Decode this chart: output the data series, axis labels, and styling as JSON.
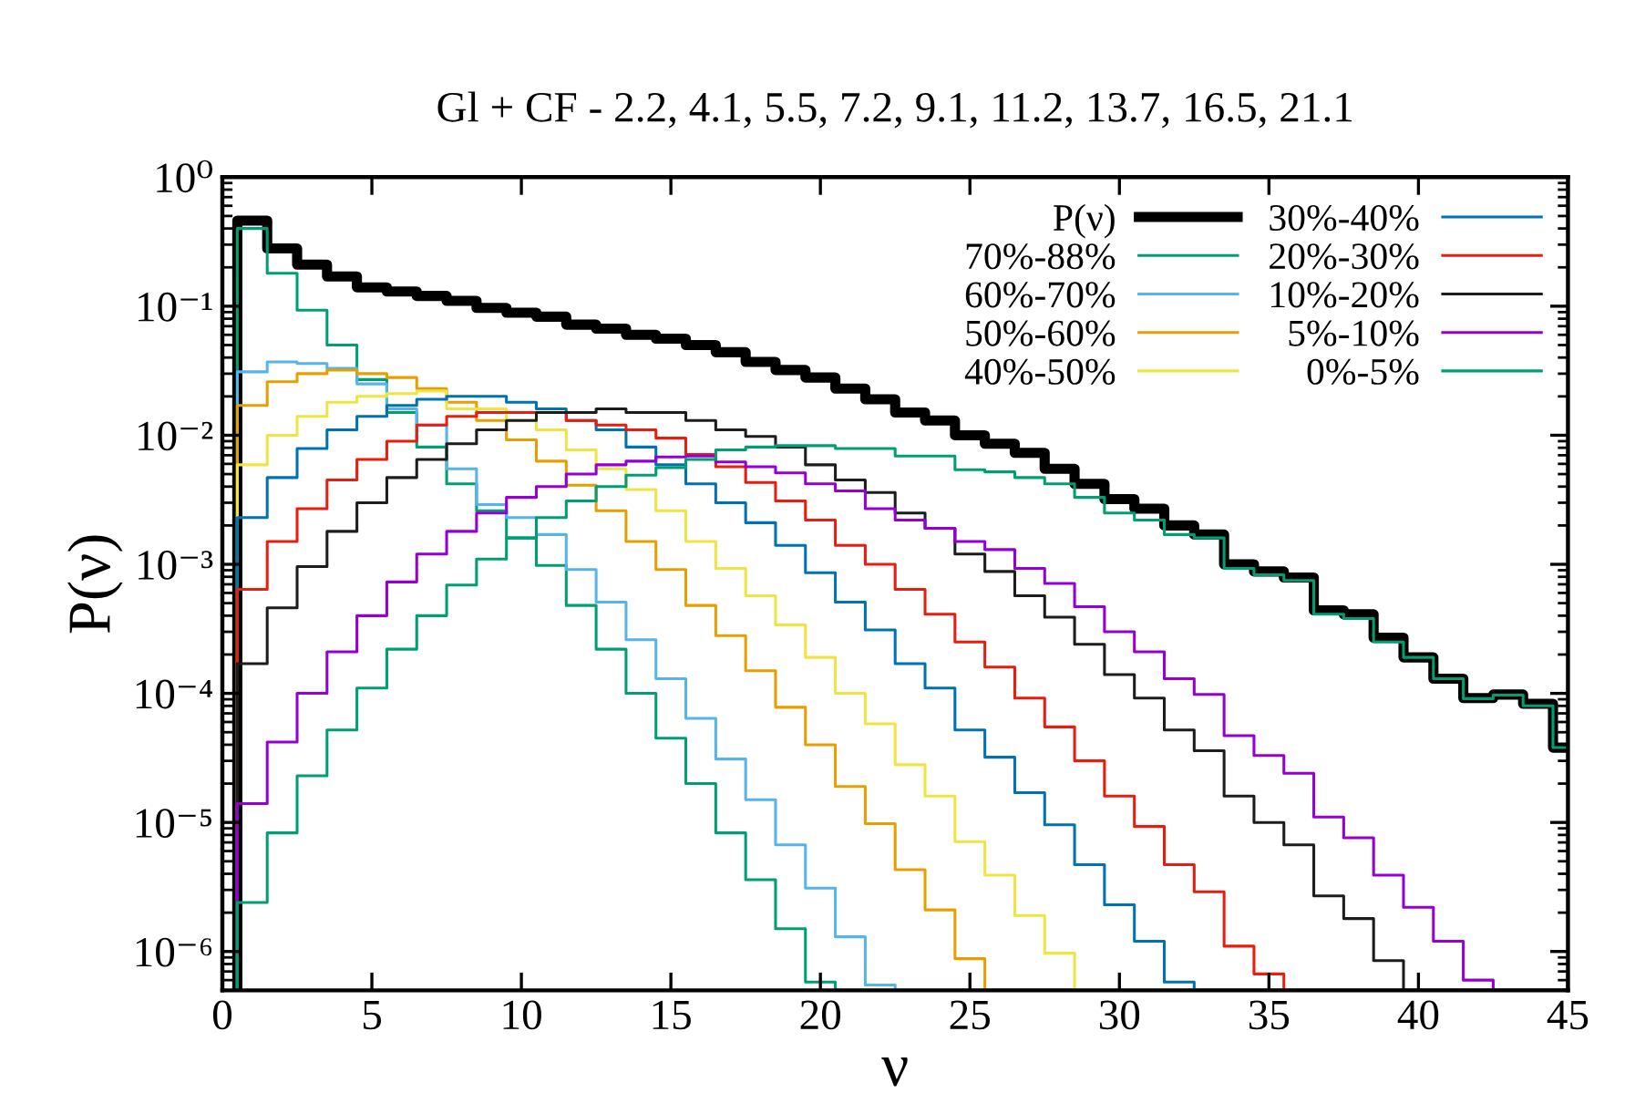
{
  "chart_data": {
    "type": "histogram",
    "title": "Gl + CF - 2.2, 4.1, 5.5, 7.2, 9.1, 11.2, 13.7, 16.5, 21.1",
    "xlabel": "ν",
    "ylabel": "P(ν)",
    "bins": [
      0.5,
      1.5,
      2.5,
      3.5,
      4.5,
      5.5,
      6.5,
      7.5,
      8.5,
      9.5,
      10.5,
      11.5,
      12.5,
      13.5,
      14.5,
      15.5,
      16.5,
      17.5,
      18.5,
      19.5,
      20.5,
      21.5,
      22.5,
      23.5,
      24.5,
      25.5,
      26.5,
      27.5,
      28.5,
      29.5,
      30.5,
      31.5,
      32.5,
      33.5,
      34.5,
      35.5,
      36.5,
      37.5,
      38.5,
      39.5,
      40.5,
      41.5,
      42.5,
      43.5,
      44.5,
      45.5
    ],
    "log": "y",
    "xlim": [
      0,
      45
    ],
    "ylim": [
      5e-07,
      1
    ],
    "xticks": [
      0,
      5,
      10,
      15,
      20,
      25,
      30,
      35,
      40,
      45
    ],
    "yticks": [
      {
        "value": 1,
        "label": "10⁰"
      },
      {
        "value": 0.1,
        "label": "10⁻¹"
      },
      {
        "value": 0.01,
        "label": "10⁻²"
      },
      {
        "value": 0.001,
        "label": "10⁻³"
      },
      {
        "value": 0.0001,
        "label": "10⁻⁴"
      },
      {
        "value": 1e-05,
        "label": "10⁻⁵"
      },
      {
        "value": 1e-06,
        "label": "10⁻⁶"
      }
    ],
    "grid": false,
    "legend": "top right",
    "series": [
      {
        "name": "P(ν)",
        "color": "#000000",
        "values": [
          0.46,
          0.28,
          0.21,
          0.17,
          0.14,
          0.13,
          0.12,
          0.11,
          0.097,
          0.089,
          0.083,
          0.072,
          0.067,
          0.06,
          0.056,
          0.05,
          0.044,
          0.037,
          0.032,
          0.028,
          0.023,
          0.019,
          0.015,
          0.013,
          0.01,
          0.0086,
          0.0073,
          0.0055,
          0.0042,
          0.0032,
          0.0027,
          0.002,
          0.0017,
          0.001,
          0.00088,
          0.00079,
          0.00044,
          0.00041,
          0.00027,
          0.00019,
          0.00013,
          9.2e-05,
          9.8e-05,
          8.3e-05,
          3.8e-05
        ]
      },
      {
        "name": "70%-88%",
        "color": "#009e73",
        "values": [
          0.4,
          0.18,
          0.093,
          0.05,
          0.027,
          0.015,
          0.0081,
          0.0042,
          0.0026,
          0.0016,
          0.00098,
          0.00048,
          0.00022,
          0.0001,
          4.5e-05,
          2e-05,
          8.3e-06,
          3.6e-06,
          1.5e-06,
          5.8e-07,
          null,
          null,
          null,
          null,
          null,
          null,
          null,
          null,
          null,
          null,
          null,
          null,
          null,
          null,
          null,
          null,
          null,
          null,
          null,
          null,
          null,
          null,
          null,
          null,
          null
        ]
      },
      {
        "name": "60%-70%",
        "color": "#56b4e9",
        "values": [
          0.031,
          0.037,
          0.036,
          0.033,
          0.025,
          0.016,
          0.012,
          0.0055,
          0.0029,
          0.0023,
          0.0017,
          0.00091,
          0.00051,
          0.00026,
          0.00013,
          6.4e-05,
          3.1e-05,
          1.5e-05,
          6.7e-06,
          3.1e-06,
          1.3e-06,
          5.5e-07,
          null,
          null,
          null,
          null,
          null,
          null,
          null,
          null,
          null,
          null,
          null,
          null,
          null,
          null,
          null,
          null,
          null,
          null,
          null,
          null,
          null,
          null,
          null
        ]
      },
      {
        "name": "50%-60%",
        "color": "#e69f00",
        "values": [
          0.017,
          0.026,
          0.03,
          0.032,
          0.03,
          0.028,
          0.023,
          0.018,
          0.013,
          0.0092,
          0.0063,
          0.0041,
          0.0026,
          0.0015,
          0.00091,
          0.00048,
          0.00028,
          0.00015,
          7.8e-05,
          4e-05,
          1.9e-05,
          9.8e-06,
          4.3e-06,
          2.1e-06,
          8.8e-07,
          null,
          null,
          null,
          null,
          null,
          null,
          null,
          null,
          null,
          null,
          null,
          null,
          null,
          null,
          null,
          null,
          null,
          null,
          null,
          null
        ]
      },
      {
        "name": "40%-50%",
        "color": "#f0e442",
        "values": [
          0.0059,
          0.01,
          0.014,
          0.018,
          0.02,
          0.021,
          0.022,
          0.016,
          0.016,
          0.013,
          0.011,
          0.0077,
          0.0055,
          0.0038,
          0.0026,
          0.0015,
          0.00093,
          0.00057,
          0.00034,
          0.00019,
          0.0001,
          5.8e-05,
          2.8e-05,
          1.6e-05,
          7.1e-06,
          3.9e-06,
          1.9e-06,
          9.7e-07,
          null,
          null,
          null,
          null,
          null,
          null,
          null,
          null,
          null,
          null,
          null,
          null,
          null,
          null,
          null,
          null,
          null
        ]
      },
      {
        "name": "30%-40%",
        "color": "#0072b2",
        "values": [
          0.0023,
          0.0047,
          0.0079,
          0.011,
          0.014,
          0.017,
          0.019,
          0.02,
          0.02,
          0.018,
          0.016,
          0.013,
          0.011,
          0.0081,
          0.0059,
          0.0042,
          0.003,
          0.0021,
          0.0014,
          0.00086,
          0.00051,
          0.00031,
          0.00017,
          0.00011,
          5.2e-05,
          3.2e-05,
          1.7e-05,
          9.6e-06,
          4.7e-06,
          2.3e-06,
          1.2e-06,
          5.8e-07,
          null,
          null,
          null,
          null,
          null,
          null,
          null,
          null,
          null,
          null,
          null,
          null,
          null
        ]
      },
      {
        "name": "20%-30%",
        "color": "#e51e10",
        "values": [
          0.00064,
          0.0015,
          0.0027,
          0.0045,
          0.0065,
          0.009,
          0.012,
          0.014,
          0.015,
          0.015,
          0.015,
          0.013,
          0.012,
          0.011,
          0.0095,
          0.0071,
          0.0057,
          0.0043,
          0.0031,
          0.0022,
          0.0014,
          0.001,
          0.00064,
          0.00041,
          0.00025,
          0.00016,
          9.2e-05,
          5.5e-05,
          3e-05,
          1.6e-05,
          9.3e-06,
          4.7e-06,
          2.9e-06,
          1.1e-06,
          6.7e-07,
          null,
          null,
          null,
          null,
          null,
          null,
          null,
          null,
          null,
          null
        ]
      },
      {
        "name": "10%-20%",
        "color": "#1c1c1c",
        "values": [
          0.00017,
          0.00046,
          0.00096,
          0.0018,
          0.003,
          0.0047,
          0.0065,
          0.0086,
          0.011,
          0.013,
          0.015,
          0.015,
          0.016,
          0.015,
          0.015,
          0.013,
          0.011,
          0.0098,
          0.0081,
          0.0059,
          0.0045,
          0.0036,
          0.0025,
          0.0019,
          0.0012,
          0.00088,
          0.00057,
          0.00039,
          0.00024,
          0.00014,
          9.2e-05,
          5.2e-05,
          3.6e-05,
          1.6e-05,
          1e-05,
          6.7e-06,
          2.7e-06,
          1.8e-06,
          8.5e-07,
          null,
          null,
          null,
          null,
          null,
          null
        ]
      },
      {
        "name": "5%-10%",
        "color": "#9400d3",
        "values": [
          1.4e-05,
          4.2e-05,
          0.0001,
          0.00021,
          0.0004,
          0.00073,
          0.0012,
          0.0018,
          0.0025,
          0.0033,
          0.004,
          0.005,
          0.0059,
          0.0063,
          0.0068,
          0.0069,
          0.0062,
          0.0057,
          0.0051,
          0.0042,
          0.0037,
          0.0027,
          0.0022,
          0.0019,
          0.0015,
          0.0013,
          0.00093,
          0.00071,
          0.00047,
          0.0003,
          0.00021,
          0.00013,
          9.8e-05,
          4.7e-05,
          3.3e-05,
          2.4e-05,
          1.1e-05,
          7.6e-06,
          3.9e-06,
          2.2e-06,
          1.2e-06,
          6e-07,
          null,
          null,
          null
        ]
      },
      {
        "name": "0%-5%",
        "color": "#009e73",
        "values": [
          2.4e-06,
          8.3e-06,
          2.3e-05,
          5.2e-05,
          0.00011,
          0.00022,
          0.0004,
          0.00069,
          0.0011,
          0.0016,
          0.0023,
          0.0031,
          0.004,
          0.0049,
          0.0056,
          0.0065,
          0.0077,
          0.0081,
          0.0083,
          0.0083,
          0.0079,
          0.0079,
          0.0069,
          0.0069,
          0.0054,
          0.0052,
          0.0047,
          0.0042,
          0.0033,
          0.0025,
          0.0022,
          0.0017,
          0.0016,
          0.00093,
          0.00083,
          0.00075,
          0.00041,
          0.00038,
          0.00025,
          0.00019,
          0.00013,
          9.1e-05,
          9.7e-05,
          8e-05,
          3.8e-05
        ]
      }
    ]
  }
}
